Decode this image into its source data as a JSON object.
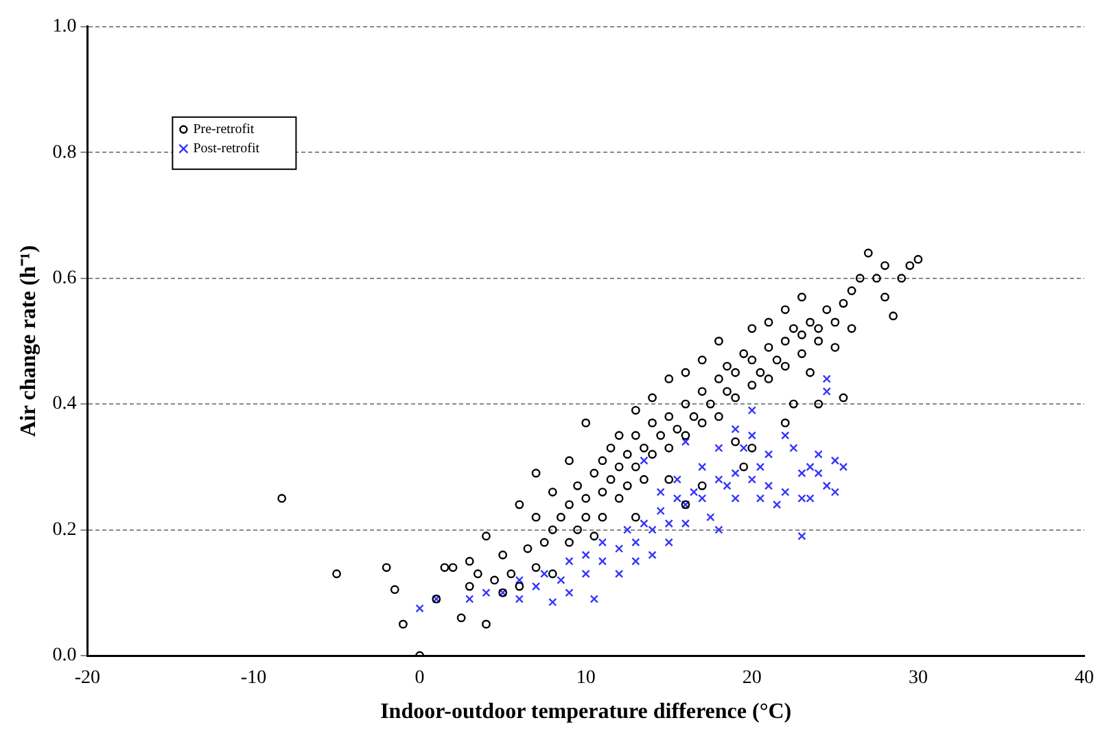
{
  "chart_data": {
    "type": "scatter",
    "xlabel": "Indoor-outdoor temperature difference (°C)",
    "ylabel": "Air change rate (h⁻¹)",
    "xlim": [
      -20,
      40
    ],
    "xticks": [
      -20,
      -10,
      0,
      10,
      20,
      30,
      40
    ],
    "ylim": [
      0,
      1
    ],
    "yticks": [
      {
        "value": 0,
        "label": "0.0"
      },
      {
        "value": 0.2,
        "label": "0.2"
      },
      {
        "value": 0.4,
        "label": "0.4"
      },
      {
        "value": 0.6,
        "label": "0.6"
      },
      {
        "value": 0.8,
        "label": "0.8"
      },
      {
        "value": 1,
        "label": "1.0"
      }
    ],
    "grid": "y",
    "legend": "top left",
    "series": [
      {
        "name": "Pre-retrofit",
        "color": "#000000",
        "marker": "circle",
        "x": [
          -8.3,
          -5,
          -2,
          -1.5,
          -1,
          0,
          1,
          1.5,
          2,
          2.5,
          3,
          3,
          3.5,
          4,
          4,
          4.5,
          5,
          5,
          5.5,
          6,
          6,
          6.5,
          7,
          7,
          7,
          7.5,
          8,
          8,
          8,
          8.5,
          9,
          9,
          9,
          9.5,
          9.5,
          10,
          10,
          10,
          10.5,
          10.5,
          11,
          11,
          11,
          11.5,
          11.5,
          12,
          12,
          12,
          12.5,
          12.5,
          13,
          13,
          13,
          13.5,
          13.5,
          14,
          14,
          14,
          14.5,
          15,
          15,
          15,
          15.5,
          16,
          16,
          16,
          16.5,
          17,
          17,
          17,
          17.5,
          18,
          18,
          18,
          18.5,
          18.5,
          19,
          19,
          19,
          19.5,
          20,
          20,
          20,
          20.5,
          21,
          21,
          21,
          21.5,
          22,
          22,
          22,
          22.5,
          22.5,
          23,
          23,
          23,
          23.5,
          23.5,
          24,
          24,
          24.5,
          25,
          25,
          25.5,
          25.5,
          26,
          26,
          26.5,
          27,
          27.5,
          28,
          28,
          28.5,
          29,
          29.5,
          30,
          24,
          22,
          17,
          20,
          16,
          15,
          13,
          19.5
        ],
        "values": [
          0.25,
          0.13,
          0.14,
          0.105,
          0.05,
          0,
          0.09,
          0.14,
          0.14,
          0.06,
          0.11,
          0.15,
          0.13,
          0.05,
          0.19,
          0.12,
          0.1,
          0.16,
          0.13,
          0.24,
          0.11,
          0.17,
          0.14,
          0.22,
          0.29,
          0.18,
          0.2,
          0.26,
          0.13,
          0.22,
          0.24,
          0.18,
          0.31,
          0.27,
          0.2,
          0.25,
          0.22,
          0.37,
          0.29,
          0.19,
          0.31,
          0.26,
          0.22,
          0.33,
          0.28,
          0.3,
          0.35,
          0.25,
          0.32,
          0.27,
          0.35,
          0.3,
          0.39,
          0.33,
          0.28,
          0.37,
          0.32,
          0.41,
          0.35,
          0.38,
          0.33,
          0.44,
          0.36,
          0.4,
          0.35,
          0.45,
          0.38,
          0.42,
          0.37,
          0.47,
          0.4,
          0.44,
          0.38,
          0.5,
          0.42,
          0.46,
          0.45,
          0.41,
          0.34,
          0.48,
          0.47,
          0.43,
          0.52,
          0.45,
          0.49,
          0.44,
          0.53,
          0.47,
          0.5,
          0.46,
          0.55,
          0.52,
          0.4,
          0.51,
          0.48,
          0.57,
          0.53,
          0.45,
          0.52,
          0.5,
          0.55,
          0.53,
          0.49,
          0.41,
          0.56,
          0.58,
          0.52,
          0.6,
          0.64,
          0.6,
          0.62,
          0.57,
          0.54,
          0.6,
          0.62,
          0.63,
          0.4,
          0.37,
          0.27,
          0.33,
          0.24,
          0.28,
          0.22,
          0.3
        ]
      },
      {
        "name": "Post-retrofit",
        "color": "#3333ff",
        "marker": "cross",
        "x": [
          0,
          1,
          3,
          4,
          5,
          6,
          6,
          7,
          7.5,
          8,
          8.5,
          9,
          9,
          10,
          10,
          10.5,
          11,
          11,
          12,
          12,
          12.5,
          13,
          13,
          13.5,
          13.5,
          14,
          14,
          14.5,
          14.5,
          15,
          15,
          15.5,
          15.5,
          16,
          16,
          16.5,
          17,
          17,
          17.5,
          18,
          18,
          18.5,
          19,
          19,
          19.5,
          20,
          20,
          20,
          20.5,
          20.5,
          21,
          21,
          21.5,
          22,
          22,
          22.5,
          23,
          23,
          23,
          23.5,
          23.5,
          24,
          24,
          24.5,
          24.5,
          24.5,
          25,
          25,
          25.5,
          18,
          19,
          16
        ],
        "values": [
          0.075,
          0.09,
          0.09,
          0.1,
          0.1,
          0.09,
          0.12,
          0.11,
          0.13,
          0.085,
          0.12,
          0.15,
          0.1,
          0.13,
          0.16,
          0.09,
          0.15,
          0.18,
          0.17,
          0.13,
          0.2,
          0.18,
          0.15,
          0.21,
          0.31,
          0.2,
          0.16,
          0.23,
          0.26,
          0.21,
          0.18,
          0.25,
          0.28,
          0.24,
          0.21,
          0.26,
          0.25,
          0.3,
          0.22,
          0.28,
          0.33,
          0.27,
          0.29,
          0.25,
          0.33,
          0.28,
          0.35,
          0.39,
          0.25,
          0.3,
          0.32,
          0.27,
          0.24,
          0.35,
          0.26,
          0.33,
          0.29,
          0.19,
          0.25,
          0.3,
          0.25,
          0.32,
          0.29,
          0.42,
          0.44,
          0.27,
          0.31,
          0.26,
          0.3,
          0.2,
          0.36,
          0.34
        ]
      }
    ]
  }
}
